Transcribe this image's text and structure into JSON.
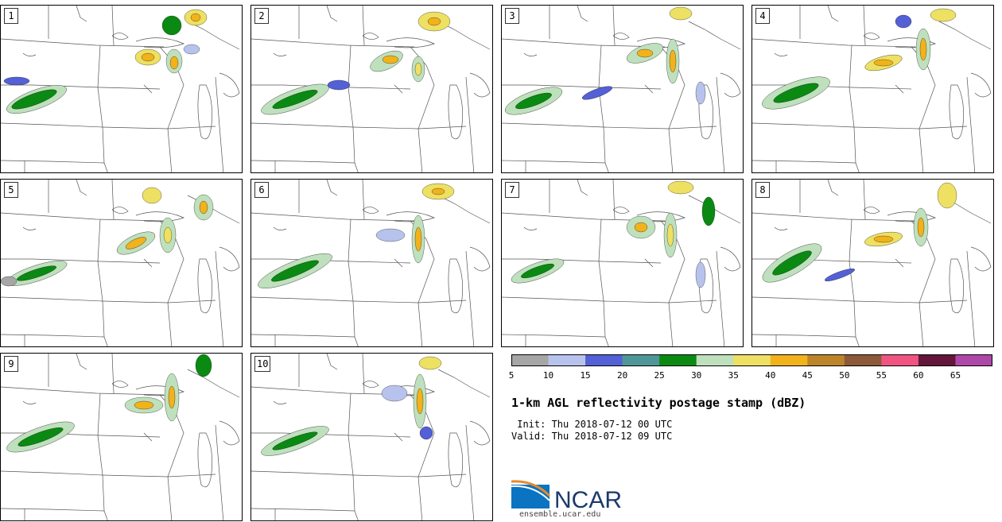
{
  "members": [
    "1",
    "2",
    "3",
    "4",
    "5",
    "6",
    "7",
    "8",
    "9",
    "10"
  ],
  "colorbar": {
    "colors": [
      "#a6a6a6",
      "#b7c3ec",
      "#5360d6",
      "#4f9699",
      "#0a8a12",
      "#bfe0bd",
      "#ede063",
      "#f2b21c",
      "#bc852a",
      "#8c5a3a",
      "#f05582",
      "#64163a",
      "#ad48a8"
    ],
    "labels": [
      "5",
      "10",
      "15",
      "20",
      "25",
      "30",
      "35",
      "40",
      "45",
      "50",
      "55",
      "60",
      "65"
    ]
  },
  "title": "1-km AGL reflectivity postage stamp (dBZ)",
  "init": " Init: Thu 2018-07-12 00 UTC",
  "valid": "Valid: Thu 2018-07-12 09 UTC",
  "logo": {
    "name": "NCAR",
    "url": "ensemble.ucar.edu",
    "colors": {
      "blue": "#0a73c2",
      "orange": "#e88a2a",
      "navy": "#1b3a6b"
    }
  }
}
